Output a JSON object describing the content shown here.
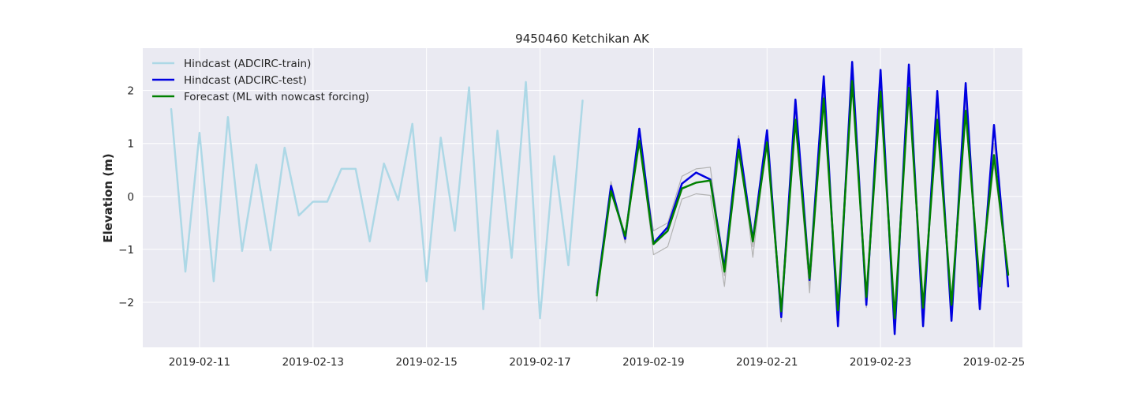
{
  "chart_data": {
    "type": "line",
    "title": "9450460 Ketchikan AK",
    "xlabel": "",
    "ylabel": "Elevation (m)",
    "x_start": "2019-02-10T12:00",
    "x_step_hours": 6,
    "x_range": [
      "2019-02-10T00:00",
      "2019-02-25T12:00"
    ],
    "ylim": [
      -2.85,
      2.8
    ],
    "xticks": [
      "2019-02-11",
      "2019-02-13",
      "2019-02-15",
      "2019-02-17",
      "2019-02-19",
      "2019-02-21",
      "2019-02-23",
      "2019-02-25"
    ],
    "yticks": [
      -2,
      -1,
      0,
      1,
      2
    ],
    "ytick_labels": [
      "−2",
      "−1",
      "0",
      "1",
      "2"
    ],
    "grid": true,
    "legend_position": "top-left",
    "series": [
      {
        "name": "Hindcast (ADCIRC-train)",
        "color": "#add8e6",
        "start_index": 0,
        "values": [
          1.65,
          -1.42,
          1.2,
          -1.6,
          1.5,
          -1.03,
          0.6,
          -1.02,
          0.92,
          -0.36,
          -0.1,
          -0.1,
          0.52,
          0.52,
          -0.85,
          0.62,
          -0.07,
          1.37,
          -1.6,
          1.11,
          -0.65,
          2.06,
          -2.13,
          1.24,
          -1.16,
          2.16,
          -2.3,
          0.76,
          -1.3,
          1.81
        ]
      },
      {
        "name": "",
        "color": "#b3b3b3",
        "start_index": 30,
        "values": [
          -1.98,
          0.28,
          -0.88,
          1.08,
          -1.1,
          -0.95,
          -0.05,
          0.05,
          0.02,
          -1.7,
          1.15,
          -1.15,
          1.12,
          -2.37,
          1.4,
          -1.82,
          1.9,
          -2.3,
          2.15,
          -2.0,
          1.98,
          -2.25,
          1.96,
          -2.15,
          1.5,
          -2.2,
          1.6,
          -1.75,
          0.6,
          -1.5
        ]
      },
      {
        "name": "",
        "color": "#b3b3b3",
        "start_index": 30,
        "values": [
          -1.85,
          0.22,
          -0.85,
          1.12,
          -0.65,
          -0.5,
          0.38,
          0.52,
          0.55,
          -1.5,
          1.1,
          -0.95,
          1.2,
          -2.25,
          1.55,
          -1.7,
          2.1,
          -2.35,
          2.3,
          -2.1,
          2.1,
          -2.4,
          2.2,
          -2.3,
          1.7,
          -2.25,
          1.8,
          -1.95,
          1.0,
          -1.6
        ]
      },
      {
        "name": "Hindcast (ADCIRC-test)",
        "color": "#0000e0",
        "start_index": 30,
        "values": [
          -1.82,
          0.2,
          -0.8,
          1.28,
          -0.88,
          -0.58,
          0.24,
          0.45,
          0.32,
          -1.35,
          1.08,
          -0.82,
          1.25,
          -2.28,
          1.83,
          -1.58,
          2.27,
          -2.45,
          2.54,
          -2.05,
          2.39,
          -2.6,
          2.49,
          -2.45,
          1.99,
          -2.35,
          2.14,
          -2.13,
          1.35,
          -1.7
        ]
      },
      {
        "name": "Forecast (ML with nowcast forcing)",
        "color": "#008000",
        "start_index": 30,
        "values": [
          -1.87,
          0.1,
          -0.75,
          1.05,
          -0.9,
          -0.65,
          0.15,
          0.26,
          0.3,
          -1.42,
          0.88,
          -0.85,
          1.02,
          -2.17,
          1.45,
          -1.55,
          1.85,
          -2.15,
          2.18,
          -1.9,
          1.98,
          -2.3,
          2.05,
          -2.1,
          1.45,
          -2.05,
          1.62,
          -1.7,
          0.78,
          -1.48
        ]
      }
    ]
  }
}
